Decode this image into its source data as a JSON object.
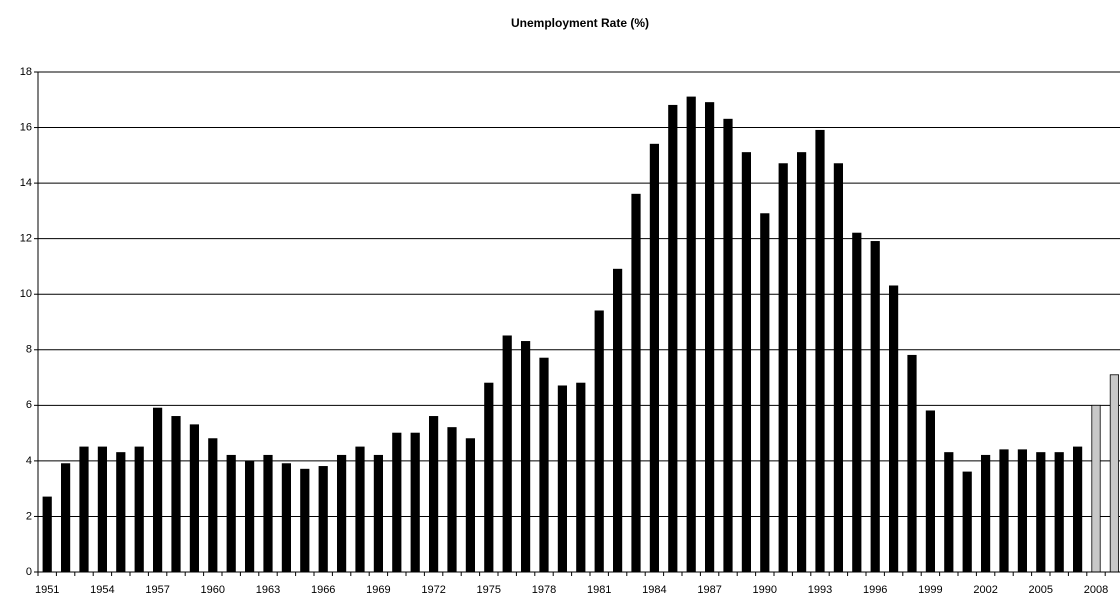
{
  "chart_data": {
    "type": "bar",
    "title": "Unemployment Rate (%)",
    "categories": [
      "1951",
      null,
      null,
      "1954",
      null,
      null,
      "1957",
      null,
      null,
      "1960",
      null,
      null,
      "1963",
      null,
      null,
      "1966",
      null,
      null,
      "1969",
      null,
      null,
      "1972",
      null,
      null,
      "1975",
      null,
      null,
      "1978",
      null,
      null,
      "1981",
      null,
      null,
      "1984",
      null,
      null,
      "1987",
      null,
      null,
      "1990",
      null,
      null,
      "1993",
      null,
      null,
      "1996",
      null,
      null,
      "1999",
      null,
      null,
      "2002",
      null,
      null,
      "2005",
      null,
      null,
      "2008",
      null
    ],
    "values": [
      2.7,
      3.9,
      4.5,
      4.5,
      4.3,
      4.5,
      5.9,
      5.6,
      5.3,
      4.8,
      4.2,
      4.0,
      4.2,
      3.9,
      3.7,
      3.8,
      4.2,
      4.5,
      4.2,
      5.0,
      5.0,
      5.6,
      5.2,
      4.8,
      6.8,
      8.5,
      8.3,
      7.7,
      6.7,
      6.8,
      9.4,
      10.9,
      13.6,
      15.4,
      16.8,
      17.1,
      16.9,
      16.3,
      15.1,
      12.9,
      14.7,
      15.1,
      15.9,
      14.7,
      12.2,
      11.9,
      10.3,
      7.8,
      5.8,
      4.3,
      3.6,
      4.2,
      4.4,
      4.4,
      4.3,
      4.3,
      4.5,
      6.0,
      7.1
    ],
    "colors": [
      "#000000",
      "#000000",
      "#000000",
      "#000000",
      "#000000",
      "#000000",
      "#000000",
      "#000000",
      "#000000",
      "#000000",
      "#000000",
      "#000000",
      "#000000",
      "#000000",
      "#000000",
      "#000000",
      "#000000",
      "#000000",
      "#000000",
      "#000000",
      "#000000",
      "#000000",
      "#000000",
      "#000000",
      "#000000",
      "#000000",
      "#000000",
      "#000000",
      "#000000",
      "#000000",
      "#000000",
      "#000000",
      "#000000",
      "#000000",
      "#000000",
      "#000000",
      "#000000",
      "#000000",
      "#000000",
      "#000000",
      "#000000",
      "#000000",
      "#000000",
      "#000000",
      "#000000",
      "#000000",
      "#000000",
      "#000000",
      "#000000",
      "#000000",
      "#000000",
      "#000000",
      "#000000",
      "#000000",
      "#000000",
      "#000000",
      "#000000",
      "#c8c8c8",
      "#c8c8c8"
    ],
    "ylim": [
      0,
      18
    ],
    "yticks": [
      0,
      2,
      4,
      6,
      8,
      10,
      12,
      14,
      16,
      18
    ],
    "grid": true
  }
}
